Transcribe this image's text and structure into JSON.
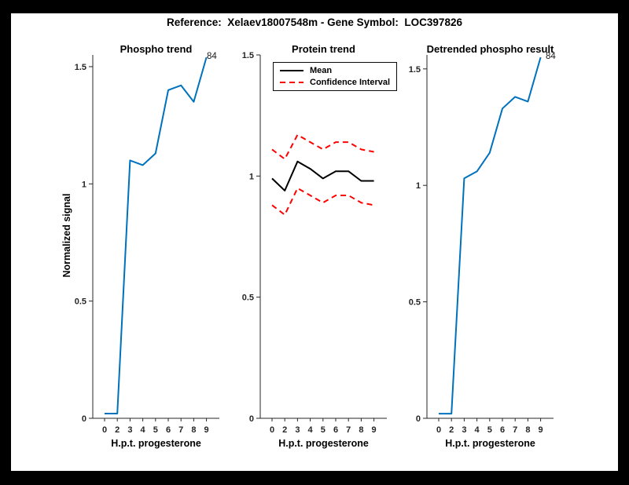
{
  "window": {
    "frame_color": "#000000",
    "canvas_color": "#ffffff",
    "accent_blue": "#0072BD",
    "ci_red": "#FF0000",
    "axis_color": "#262626"
  },
  "header": {
    "title": "Reference:  Xelaev18007548m - Gene Symbol:  LOC397826"
  },
  "chart_data": [
    {
      "type": "line",
      "title": "Phospho trend",
      "xlabel": "H.p.t. progesterone",
      "ylabel": "Normalized signal",
      "x_tick_labels": [
        "0",
        "2",
        "3",
        "4",
        "5",
        "6",
        "7",
        "8",
        "9"
      ],
      "y_ticks": [
        0,
        0.5,
        1,
        1.5
      ],
      "y_tick_labels": [
        "0",
        "0.5",
        "1",
        "1.5"
      ],
      "ylim": [
        0,
        1.55
      ],
      "grid": false,
      "series": [
        {
          "role": "phospho-signal",
          "color": "#0072BD",
          "style": "solid",
          "values": [
            0.02,
            0.02,
            1.1,
            1.08,
            1.13,
            1.4,
            1.42,
            1.35,
            1.54
          ]
        }
      ],
      "annotation": {
        "text": "84",
        "at_point_index": 8
      }
    },
    {
      "type": "line",
      "title": "Protein trend",
      "xlabel": "H.p.t. progesterone",
      "ylabel": "",
      "x_tick_labels": [
        "0",
        "2",
        "3",
        "4",
        "5",
        "6",
        "7",
        "8",
        "9"
      ],
      "y_ticks": [
        0,
        0.5,
        1,
        1.5
      ],
      "y_tick_labels": [
        "0",
        "0.5",
        "1",
        "1.5"
      ],
      "ylim": [
        0,
        1.5
      ],
      "grid": false,
      "series": [
        {
          "role": "mean",
          "color": "#000000",
          "style": "solid",
          "values": [
            0.99,
            0.94,
            1.06,
            1.03,
            0.99,
            1.02,
            1.02,
            0.98,
            0.98
          ]
        },
        {
          "role": "ci-upper",
          "color": "#FF0000",
          "style": "dashed",
          "values": [
            1.11,
            1.07,
            1.17,
            1.14,
            1.11,
            1.14,
            1.14,
            1.11,
            1.1
          ]
        },
        {
          "role": "ci-lower",
          "color": "#FF0000",
          "style": "dashed",
          "values": [
            0.88,
            0.84,
            0.95,
            0.92,
            0.89,
            0.92,
            0.92,
            0.89,
            0.88
          ]
        }
      ],
      "legend": {
        "position": "top-left",
        "entries": [
          {
            "label": "Mean",
            "style": "solid",
            "color": "#000000"
          },
          {
            "label": "Confidence Interval",
            "style": "dashed",
            "color": "#FF0000"
          }
        ]
      }
    },
    {
      "type": "line",
      "title": "Detrended phospho result",
      "xlabel": "H.p.t. progesterone",
      "ylabel": "",
      "x_tick_labels": [
        "0",
        "2",
        "3",
        "4",
        "5",
        "6",
        "7",
        "8",
        "9"
      ],
      "y_ticks": [
        0,
        0.5,
        1,
        1.5
      ],
      "y_tick_labels": [
        "0",
        "0.5",
        "1",
        "1.5"
      ],
      "ylim": [
        0,
        1.56
      ],
      "grid": false,
      "series": [
        {
          "role": "detrended-phospho-signal",
          "color": "#0072BD",
          "style": "solid",
          "values": [
            0.02,
            0.02,
            1.03,
            1.06,
            1.14,
            1.33,
            1.38,
            1.36,
            1.55
          ]
        }
      ],
      "annotation": {
        "text": "84",
        "at_point_index": 8
      }
    }
  ]
}
